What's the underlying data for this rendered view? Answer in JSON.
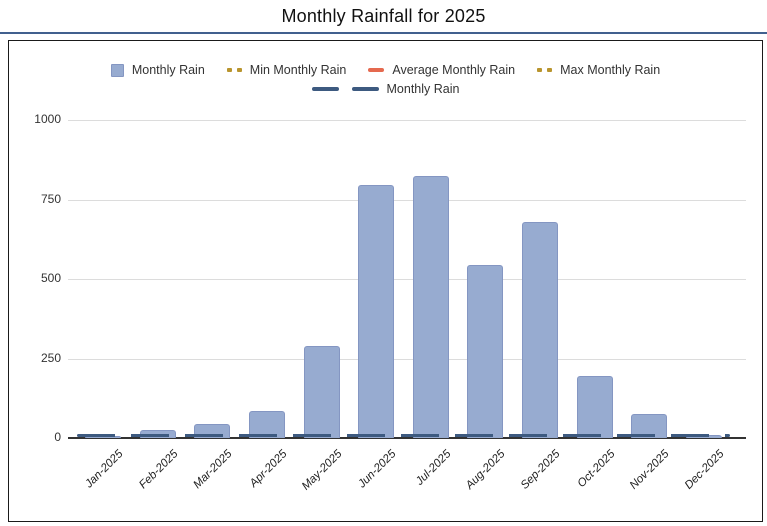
{
  "title": "Monthly Rainfall for 2025",
  "colors": {
    "bar_fill": "#97abd0",
    "bar_border": "#8496c2",
    "navy_line": "#3d5a80",
    "gold": "#b9952e",
    "coral": "#e5694f",
    "title_rule": "#41608e",
    "grid": "#dcdcdc",
    "axis": "#333333"
  },
  "legend": {
    "rows": [
      [
        {
          "label": "Monthly Rain",
          "swatch": "bar-square"
        },
        {
          "label": "Min Monthly Rain",
          "swatch": "gold-dots"
        },
        {
          "label": "Average Monthly Rain",
          "swatch": "coral-dash"
        },
        {
          "label": "Max Monthly Rain",
          "swatch": "gold-dots"
        }
      ],
      [
        {
          "label": "Monthly Rain",
          "swatch": "navy-dashes"
        }
      ]
    ]
  },
  "chart_data": {
    "type": "bar",
    "title": "Monthly Rainfall for 2025",
    "categories": [
      "Jan-2025",
      "Feb-2025",
      "Mar-2025",
      "Apr-2025",
      "May-2025",
      "Jun-2025",
      "Jul-2025",
      "Aug-2025",
      "Sep-2025",
      "Oct-2025",
      "Nov-2025",
      "Dec-2025"
    ],
    "series": [
      {
        "name": "Monthly Rain",
        "type": "bar",
        "values": [
          5,
          25,
          45,
          85,
          290,
          795,
          825,
          545,
          680,
          195,
          75,
          8
        ]
      },
      {
        "name": "Monthly Rain",
        "type": "dashed-line",
        "values": [
          0,
          0,
          0,
          0,
          0,
          0,
          0,
          0,
          0,
          0,
          0,
          0
        ]
      }
    ],
    "yticks": [
      0,
      250,
      500,
      750,
      1000
    ],
    "ylim": [
      0,
      1000
    ],
    "xlabel": "",
    "ylabel": "",
    "grid": true,
    "legend_position": "top"
  }
}
